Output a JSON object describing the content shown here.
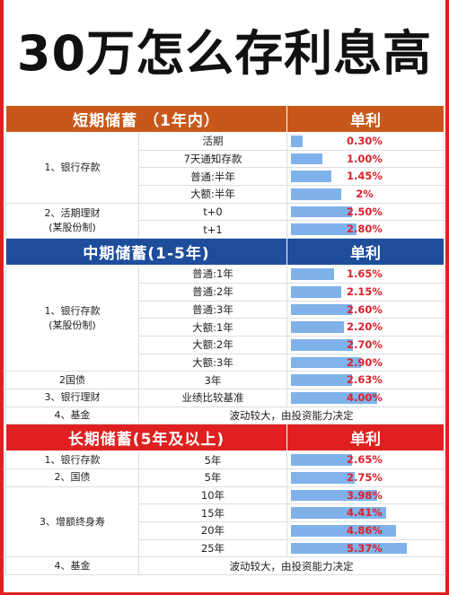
{
  "title": "30万怎么存利息高",
  "sections": {
    "short": {
      "title": "短期储蓄 （1年内）",
      "rate_header": "单利"
    },
    "mid": {
      "title": "中期储蓄(1-5年)",
      "rate_header": "单利"
    },
    "long": {
      "title": "长期储蓄(5年及以上)",
      "rate_header": "单利"
    }
  },
  "categories": {
    "short_bank": "1、银行存款",
    "short_wm_line1": "2、活期理财",
    "short_wm_line2": "(某股份制)",
    "mid_bank_line1": "1、银行存款",
    "mid_bank_line2": "(某股份制)",
    "mid_bond": "2国债",
    "mid_wm": "3、银行理财",
    "mid_fund": "4、基金",
    "long_bank": "1、银行存款",
    "long_bond": "2、国债",
    "long_ins": "3、增额终身寿",
    "long_fund": "4、基金"
  },
  "rows": [
    {
      "option": "活期",
      "rate": "0.30%",
      "level": 0.08
    },
    {
      "option": "7天通知存款",
      "rate": "1.00%",
      "level": 0.21
    },
    {
      "option": "普通:半年",
      "rate": "1.45%",
      "level": 0.27
    },
    {
      "option": "大额:半年",
      "rate": "2%",
      "level": 0.34
    },
    {
      "option": "t+0",
      "rate": "2.50%",
      "level": 0.41
    },
    {
      "option": "t+1",
      "rate": "2.80%",
      "level": 0.44
    },
    {
      "option": "普通:1年",
      "rate": "1.65%",
      "level": 0.29
    },
    {
      "option": "普通:2年",
      "rate": "2.15%",
      "level": 0.34
    },
    {
      "option": "普通:3年",
      "rate": "2.60%",
      "level": 0.41
    },
    {
      "option": "大额:1年",
      "rate": "2.20%",
      "level": 0.36
    },
    {
      "option": "大额:2年",
      "rate": "2.70%",
      "level": 0.42
    },
    {
      "option": "大额:3年",
      "rate": "2.90%",
      "level": 0.47
    },
    {
      "option": "3年",
      "rate": "2.63%",
      "level": 0.41
    },
    {
      "option": "业绩比较基准",
      "rate": "4.00%",
      "level": 0.58
    },
    {
      "option": "5年",
      "rate": "2.65%",
      "level": 0.41
    },
    {
      "option": "5年",
      "rate": "2.75%",
      "level": 0.43
    },
    {
      "option": "10年",
      "rate": "3.98%",
      "level": 0.58
    },
    {
      "option": "15年",
      "rate": "4.41%",
      "level": 0.64
    },
    {
      "option": "20年",
      "rate": "4.86%",
      "level": 0.71
    },
    {
      "option": "25年",
      "rate": "5.37%",
      "level": 0.78
    }
  ],
  "fund_note_mid": "波动较大，由投资能力决定",
  "fund_note_long": "波动较大，由投资能力决定",
  "colors": {
    "short_header": "#c8581a",
    "mid_header": "#1e4d9c",
    "long_header": "#e02020",
    "bar": "#7fb2ea",
    "rate_text": "#e0202a",
    "frame": "#e02020"
  }
}
